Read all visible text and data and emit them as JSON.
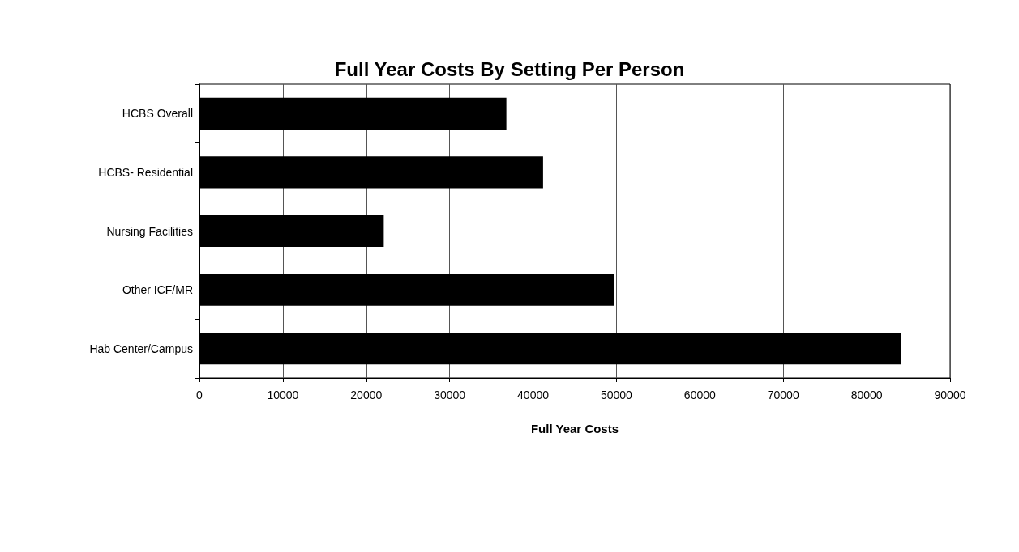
{
  "chart_data": {
    "type": "bar",
    "orientation": "horizontal",
    "title": "Full Year Costs By Setting Per Person",
    "xlabel": "Full Year Costs",
    "categories": [
      "HCBS Overall",
      "HCBS- Residential",
      "Nursing Facilities",
      "Other ICF/MR",
      "Hab Center/Campus"
    ],
    "values": [
      36800,
      41200,
      22100,
      49700,
      84100
    ],
    "color": "#000000",
    "xlim": [
      0,
      90000
    ],
    "xticks": [
      0,
      10000,
      20000,
      30000,
      40000,
      50000,
      60000,
      70000,
      80000,
      90000
    ],
    "grid": "x"
  }
}
